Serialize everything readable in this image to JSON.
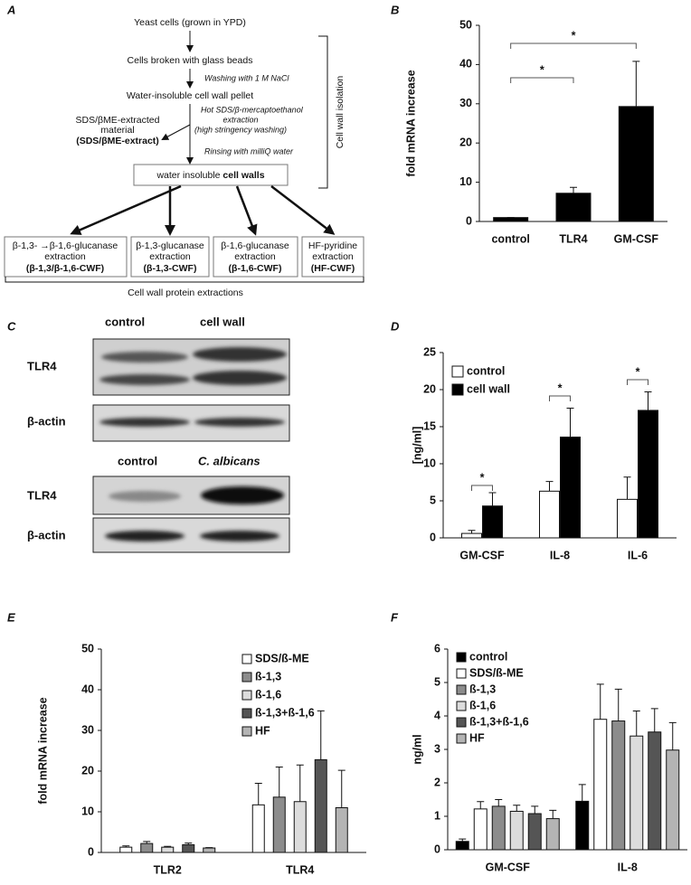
{
  "panels": [
    "A",
    "B",
    "C",
    "D",
    "E",
    "F"
  ],
  "diagram": {
    "steps": [
      "Yeast cells  (grown in YPD)",
      "Cells broken with glass beads",
      "Water-insoluble cell wall pellet"
    ],
    "treatments": [
      [
        "Washing with 1 M NaCl"
      ],
      [
        "Hot SDS/β-mercaptoethanol",
        "extraction",
        "(high stringency washing)"
      ],
      [
        "Rinsing with milliQ water"
      ]
    ],
    "side_product": [
      "SDS/βME-extracted",
      "material",
      "(SDS/βME-extract)"
    ],
    "cell_walls": [
      "water insoluble ",
      "cell walls"
    ],
    "isolation_label": "Cell wall isolation",
    "fractions": [
      [
        "β-1,3- →β-1,6-glucanase",
        "extraction",
        "(β-1,3/β-1,6-CWF)"
      ],
      [
        "β-1,3-glucanase",
        "extraction",
        "(β-1,3-CWF)"
      ],
      [
        "β-1,6-glucanase",
        "extraction",
        "(β-1,6-CWF)"
      ],
      [
        "HF-pyridine",
        "extraction",
        "(HF-CWF)"
      ]
    ],
    "fractions_label": "Cell wall protein extractions"
  },
  "blot": {
    "top": {
      "lanes": [
        "control",
        "cell wall"
      ],
      "rows": [
        "TLR4",
        "β-actin"
      ]
    },
    "bottom": {
      "lanes": [
        "control",
        "C. albicans"
      ],
      "rows": [
        "TLR4",
        "β-actin"
      ]
    }
  },
  "chart_data": [
    {
      "type": "bar",
      "ylabel": "fold mRNA increase",
      "categories": [
        "control",
        "TLR4",
        "GM-CSF"
      ],
      "values": [
        1,
        7.2,
        29.3
      ],
      "errors": [
        0,
        1.5,
        11.5
      ],
      "color": "#000000",
      "ylim": [
        0,
        50
      ],
      "yticks": [
        0,
        10,
        20,
        30,
        40,
        50
      ],
      "annotations": [
        "*",
        "*"
      ]
    },
    {
      "type": "bar",
      "ylabel": "[ng/ml]",
      "categories": [
        "GM-CSF",
        "IL-8",
        "IL-6"
      ],
      "series": [
        {
          "name": "control",
          "color": "#ffffff",
          "values": [
            0.6,
            6.3,
            5.2
          ],
          "errors": [
            0.4,
            1.3,
            3.0
          ]
        },
        {
          "name": "cell wall",
          "color": "#000000",
          "values": [
            4.3,
            13.6,
            17.2
          ],
          "errors": [
            1.8,
            3.9,
            2.5
          ]
        }
      ],
      "ylim": [
        0,
        25
      ],
      "yticks": [
        0,
        5,
        10,
        15,
        20,
        25
      ],
      "legend": "upper left",
      "annotations": [
        "*",
        "*",
        "*"
      ]
    },
    {
      "type": "bar",
      "ylabel": "fold mRNA increase",
      "categories": [
        "TLR2",
        "TLR4"
      ],
      "series": [
        {
          "name": "SDS/ß-ME",
          "color": "#ffffff",
          "values": [
            1.3,
            11.7
          ],
          "errors": [
            0.3,
            5.3
          ]
        },
        {
          "name": "ß-1,3",
          "color": "#8c8c8c",
          "values": [
            2.2,
            13.6
          ],
          "errors": [
            0.5,
            7.4
          ]
        },
        {
          "name": "ß-1,6",
          "color": "#dcdcdc",
          "values": [
            1.3,
            12.5
          ],
          "errors": [
            0.2,
            9.0
          ]
        },
        {
          "name": "ß-1,3+ß-1,6",
          "color": "#555555",
          "values": [
            1.9,
            22.8
          ],
          "errors": [
            0.4,
            12.0
          ]
        },
        {
          "name": "HF",
          "color": "#b4b4b4",
          "values": [
            1.1,
            11.0
          ],
          "errors": [
            0.1,
            9.2
          ]
        }
      ],
      "ylim": [
        0,
        50
      ],
      "yticks": [
        0,
        10,
        20,
        30,
        40,
        50
      ],
      "legend": "upper right"
    },
    {
      "type": "bar",
      "ylabel": "ng/ml",
      "categories": [
        "GM-CSF",
        "IL-8"
      ],
      "series": [
        {
          "name": "control",
          "color": "#000000",
          "values": [
            0.25,
            1.45
          ],
          "errors": [
            0.07,
            0.5
          ]
        },
        {
          "name": "SDS/ß-ME",
          "color": "#ffffff",
          "values": [
            1.22,
            3.9
          ],
          "errors": [
            0.22,
            1.05
          ]
        },
        {
          "name": "ß-1,3",
          "color": "#8c8c8c",
          "values": [
            1.3,
            3.85
          ],
          "errors": [
            0.2,
            0.95
          ]
        },
        {
          "name": "ß-1,6",
          "color": "#dcdcdc",
          "values": [
            1.15,
            3.4
          ],
          "errors": [
            0.18,
            0.75
          ]
        },
        {
          "name": "ß-1,3+ß-1,6",
          "color": "#555555",
          "values": [
            1.08,
            3.52
          ],
          "errors": [
            0.22,
            0.7
          ]
        },
        {
          "name": "HF",
          "color": "#b4b4b4",
          "values": [
            0.93,
            2.98
          ],
          "errors": [
            0.25,
            0.82
          ]
        }
      ],
      "ylim": [
        0,
        6
      ],
      "yticks": [
        0,
        1,
        2,
        3,
        4,
        5,
        6
      ],
      "legend": "upper left"
    }
  ]
}
